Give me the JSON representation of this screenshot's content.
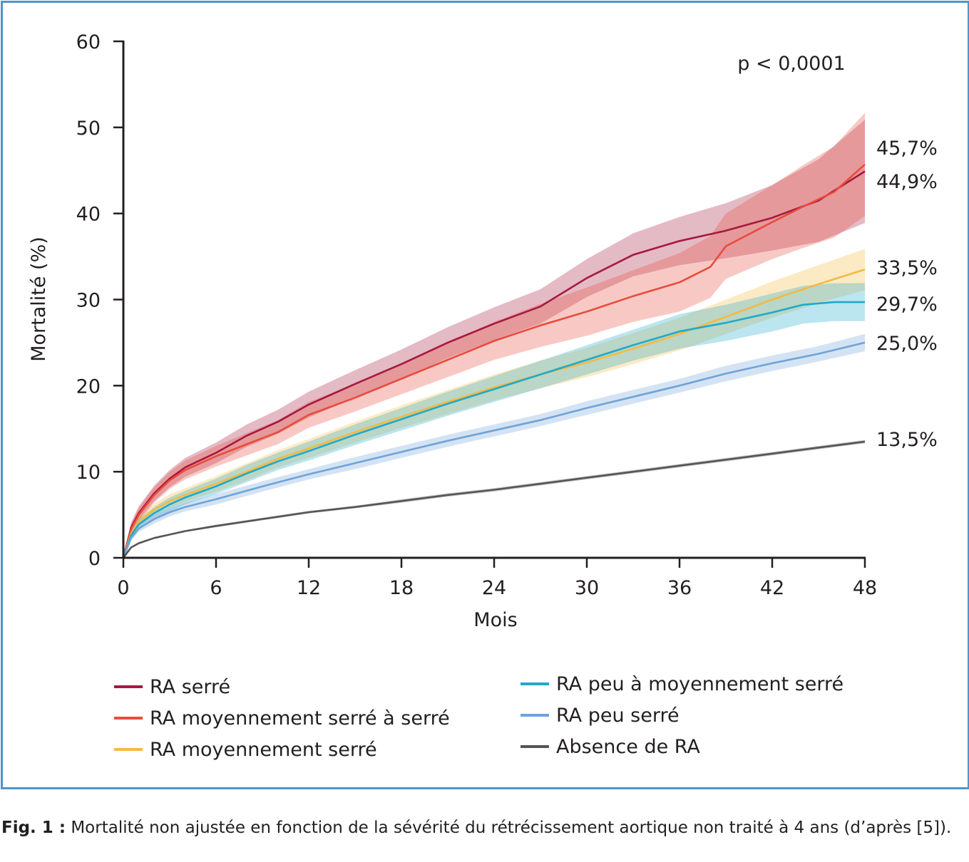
{
  "chart_data": {
    "type": "line",
    "ylabel": "Mortalité (%)",
    "xlabel": "Mois",
    "xlim": [
      0,
      48
    ],
    "ylim": [
      0,
      60
    ],
    "x_ticks": [
      0,
      6,
      12,
      18,
      24,
      30,
      36,
      42,
      48
    ],
    "y_ticks": [
      0,
      10,
      20,
      30,
      40,
      50,
      60
    ],
    "annotation": "p < 0,0001",
    "grid": false,
    "legend_position": "bottom",
    "series": [
      {
        "name": "RA serré",
        "color": "#a6193f",
        "final_label": "44,9%",
        "x": [
          0,
          0.5,
          1,
          2,
          3,
          4,
          6,
          8,
          10,
          12,
          15,
          18,
          21,
          24,
          27,
          30,
          33,
          36,
          39,
          42,
          45,
          48
        ],
        "y": [
          0,
          3.5,
          5.2,
          7.5,
          9.2,
          10.5,
          12.2,
          14.2,
          15.8,
          17.8,
          20.2,
          22.5,
          25,
          27.2,
          29.2,
          32.5,
          35.2,
          36.8,
          38,
          39.5,
          41.5,
          44.9
        ],
        "ci_halfwidth": [
          0,
          0.6,
          0.8,
          0.9,
          1,
          1.1,
          1.2,
          1.3,
          1.4,
          1.5,
          1.6,
          1.7,
          1.8,
          1.9,
          2,
          2.2,
          2.5,
          2.8,
          3.2,
          3.8,
          4.8,
          6
        ]
      },
      {
        "name": "RA moyennement serré à serré",
        "color": "#e94b3c",
        "final_label": "45,7%",
        "x": [
          0,
          0.5,
          1,
          2,
          3,
          4,
          6,
          8,
          10,
          12,
          15,
          18,
          21,
          24,
          27,
          30,
          33,
          36,
          38,
          39,
          42,
          44,
          46,
          48
        ],
        "y": [
          0,
          3.3,
          5,
          7.3,
          9,
          10.2,
          11.8,
          13.2,
          14.6,
          16.6,
          18.6,
          20.8,
          23,
          25.2,
          27,
          28.6,
          30.4,
          32,
          33.8,
          36.2,
          39,
          40.8,
          42.5,
          45.7
        ],
        "ci_halfwidth": [
          0,
          0.6,
          0.8,
          0.9,
          1,
          1.1,
          1.2,
          1.3,
          1.4,
          1.5,
          1.6,
          1.8,
          2,
          2.2,
          2.5,
          2.8,
          3,
          3.4,
          3.6,
          3.8,
          4.3,
          4.8,
          5.3,
          6
        ]
      },
      {
        "name": "RA moyennement serré",
        "color": "#f6b940",
        "final_label": "33,5%",
        "x": [
          0,
          0.5,
          1,
          2,
          3,
          4,
          6,
          8,
          10,
          12,
          15,
          18,
          21,
          24,
          27,
          30,
          33,
          36,
          39,
          42,
          45,
          48
        ],
        "y": [
          0,
          2.8,
          4.2,
          5.6,
          6.6,
          7.3,
          8.6,
          10,
          11.5,
          12.7,
          14.6,
          16.4,
          18.1,
          19.8,
          21.3,
          22.7,
          24.3,
          26,
          28,
          30,
          31.8,
          33.5
        ],
        "ci_halfwidth": [
          0,
          0.4,
          0.6,
          0.7,
          0.8,
          0.8,
          0.9,
          1,
          1,
          1.1,
          1.2,
          1.3,
          1.4,
          1.5,
          1.6,
          1.7,
          1.8,
          1.9,
          2,
          2.1,
          2.2,
          2.4
        ]
      },
      {
        "name": "RA peu à moyennement serré",
        "color": "#1fa9c9",
        "final_label": "29,7%",
        "x": [
          0,
          0.5,
          1,
          2,
          3,
          4,
          6,
          8,
          10,
          12,
          15,
          18,
          21,
          24,
          27,
          30,
          33,
          36,
          39,
          42,
          44,
          46,
          48
        ],
        "y": [
          0,
          2.6,
          3.9,
          5.2,
          6.2,
          7,
          8.3,
          9.8,
          11.2,
          12.4,
          14.3,
          16.1,
          17.9,
          19.6,
          21.3,
          23,
          24.7,
          26.3,
          27.3,
          28.5,
          29.4,
          29.7,
          29.7
        ],
        "ci_halfwidth": [
          0,
          0.4,
          0.6,
          0.7,
          0.8,
          0.8,
          0.9,
          1,
          1,
          1.1,
          1.2,
          1.3,
          1.4,
          1.5,
          1.6,
          1.7,
          1.8,
          2,
          2.1,
          2.2,
          2.2,
          2.2,
          2.2
        ]
      },
      {
        "name": "RA peu serré",
        "color": "#6fa3d8",
        "final_label": "25,0%",
        "x": [
          0,
          0.5,
          1,
          2,
          3,
          4,
          6,
          9,
          12,
          15,
          18,
          21,
          24,
          27,
          30,
          33,
          36,
          39,
          42,
          45,
          48
        ],
        "y": [
          0,
          2.3,
          3.4,
          4.5,
          5.3,
          5.9,
          6.8,
          8.3,
          9.7,
          11,
          12.3,
          13.6,
          14.8,
          16,
          17.4,
          18.7,
          20,
          21.4,
          22.6,
          23.7,
          25
        ],
        "ci_halfwidth": [
          0,
          0.3,
          0.4,
          0.5,
          0.5,
          0.5,
          0.6,
          0.6,
          0.6,
          0.7,
          0.7,
          0.7,
          0.7,
          0.7,
          0.8,
          0.8,
          0.8,
          0.9,
          0.9,
          0.9,
          1
        ]
      },
      {
        "name": "Absence de RA",
        "color": "#555557",
        "final_label": "13,5%",
        "x": [
          0,
          0.5,
          1,
          2,
          3,
          4,
          6,
          9,
          12,
          15,
          18,
          21,
          24,
          27,
          30,
          33,
          36,
          39,
          42,
          45,
          48
        ],
        "y": [
          0,
          1.2,
          1.7,
          2.3,
          2.7,
          3.1,
          3.7,
          4.5,
          5.3,
          5.9,
          6.6,
          7.3,
          7.9,
          8.6,
          9.3,
          10,
          10.7,
          11.4,
          12.1,
          12.8,
          13.5
        ],
        "ci_halfwidth": [
          0,
          0.1,
          0.1,
          0.1,
          0.1,
          0.1,
          0.15,
          0.15,
          0.15,
          0.15,
          0.2,
          0.2,
          0.2,
          0.2,
          0.2,
          0.2,
          0.2,
          0.2,
          0.2,
          0.2,
          0.2
        ]
      }
    ],
    "end_labels": [
      "45,7%",
      "44,9%",
      "33,5%",
      "29,7%",
      "25,0%",
      "13,5%"
    ]
  },
  "caption": {
    "label": "Fig. 1 :",
    "text": "Mortalité non ajustée en fonction de la sévérité du rétrécissement aortique non traité à 4 ans (d’après [5])."
  }
}
